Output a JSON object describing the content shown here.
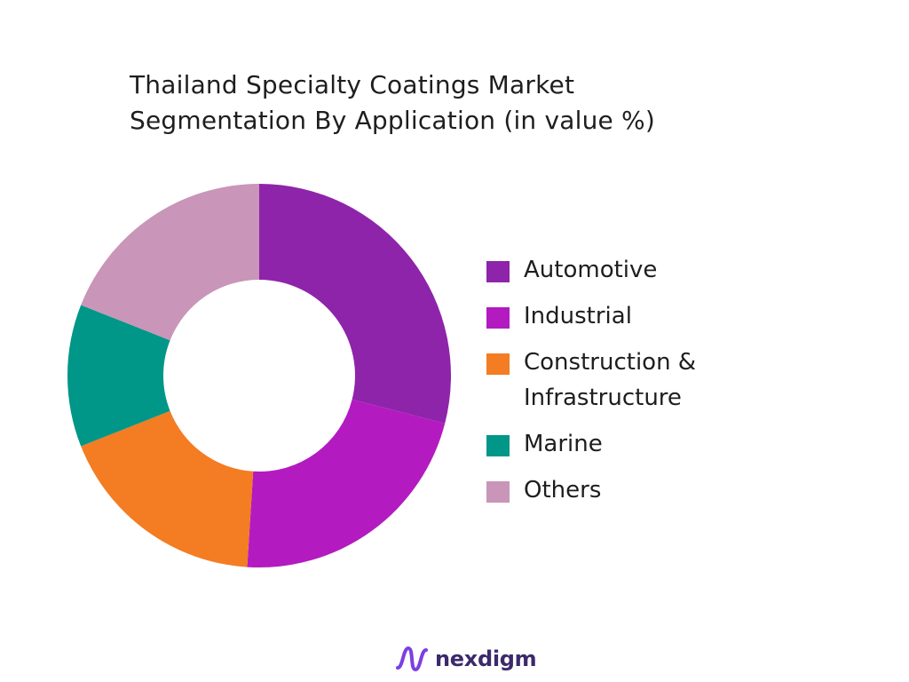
{
  "chart_data": {
    "type": "pie",
    "title_lines": [
      "Thailand Specialty Coatings Market",
      "Segmentation By Application (in value %)"
    ],
    "donut": true,
    "start_angle_deg": 0,
    "categories": [
      "Automotive",
      "Industrial",
      "Construction &\nInfrastructure",
      "Marine",
      "Others"
    ],
    "values": [
      29,
      22,
      18,
      12,
      19
    ],
    "colors": [
      "#8e24aa",
      "#b31bc0",
      "#f47c22",
      "#009688",
      "#c995b8"
    ],
    "legend_position": "right"
  },
  "logo": {
    "text": "nexdigm",
    "icon": "nexdigm-logo-icon",
    "colors": {
      "mark": "#7b3fe4",
      "text": "#3c2a6b"
    }
  }
}
